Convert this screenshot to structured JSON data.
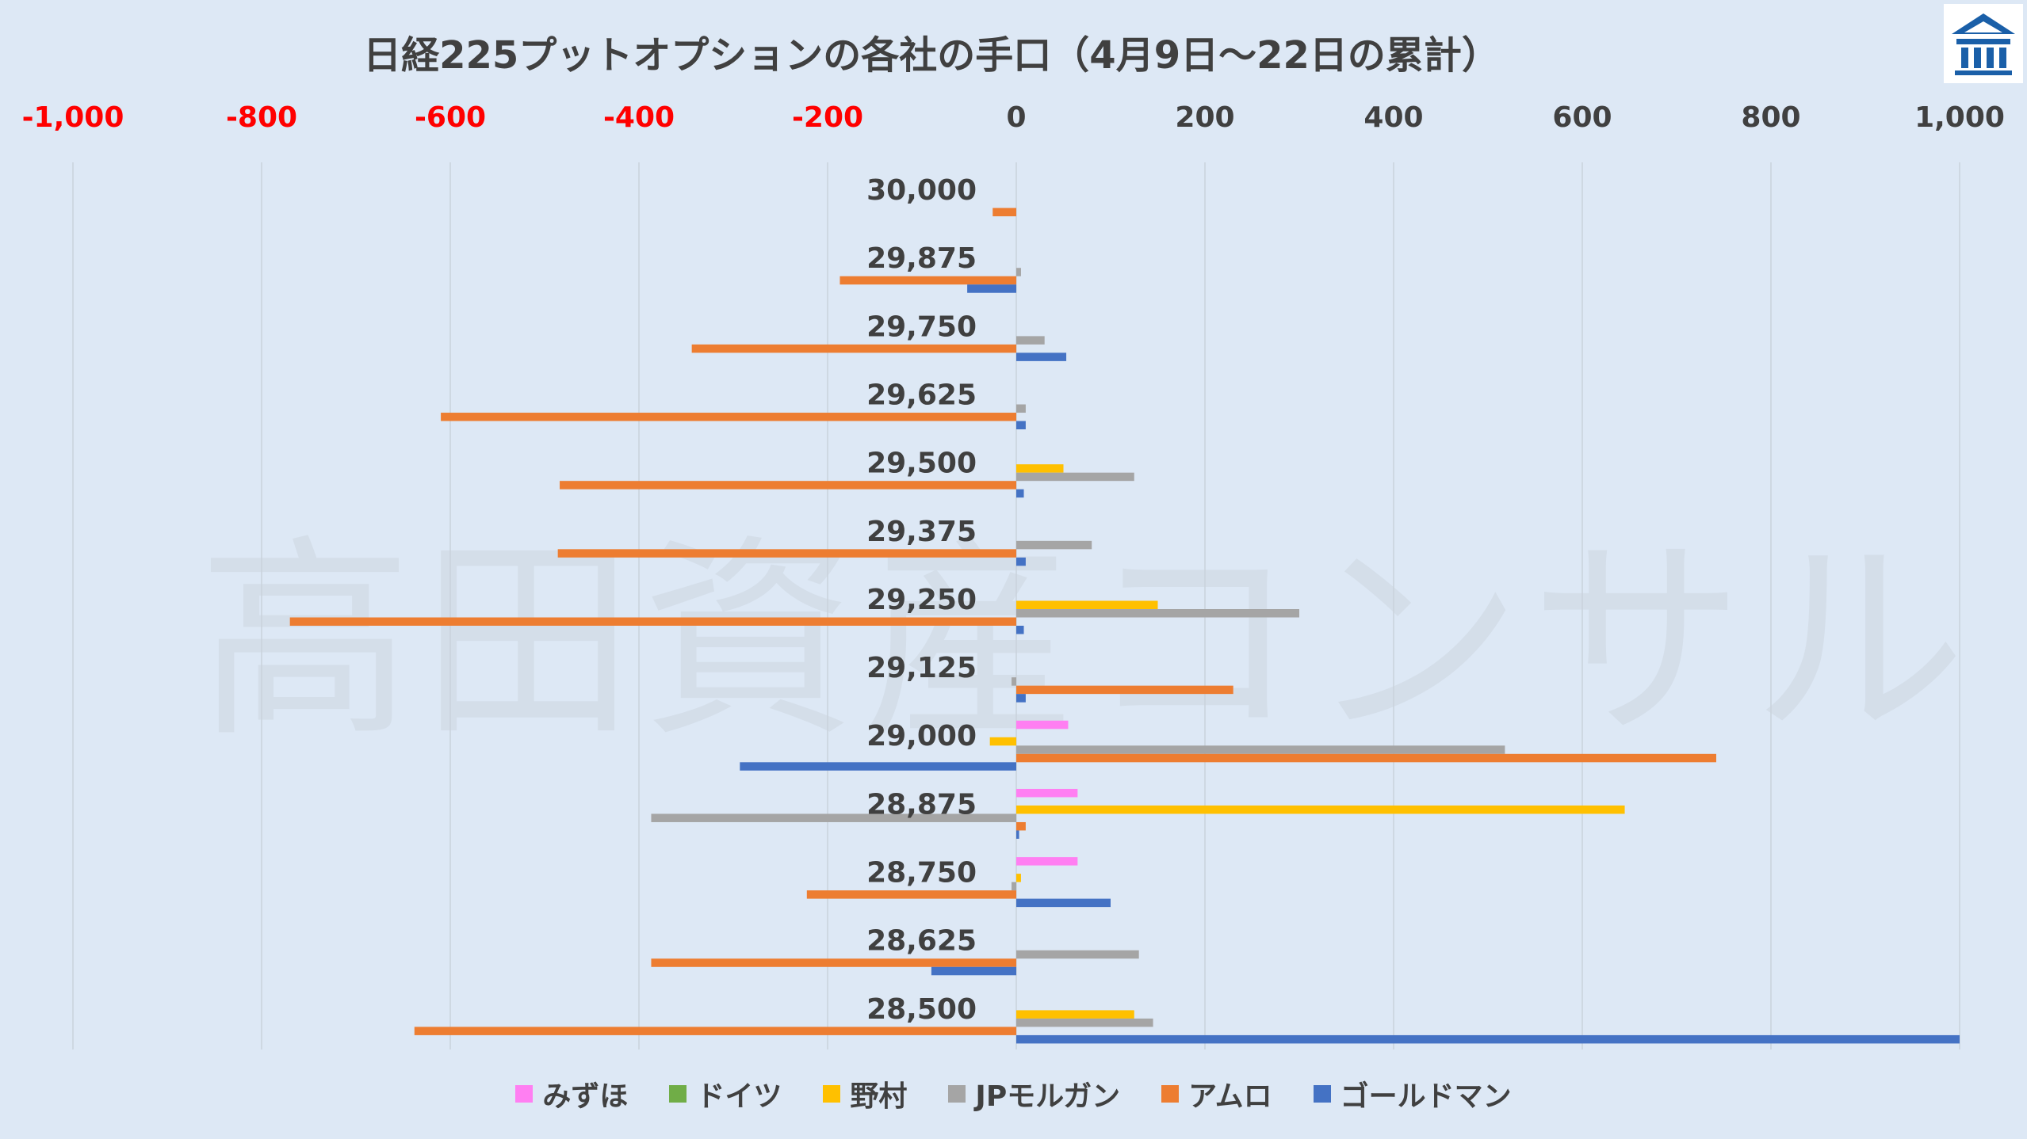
{
  "chart_data": {
    "type": "bar",
    "orientation": "horizontal",
    "title": "日経225プットオプションの各社の手口（4月9日～22日の累計）",
    "watermark": "高田資産コンサル",
    "xlim": [
      -1000,
      1000
    ],
    "x_ticks": [
      -1000,
      -800,
      -600,
      -400,
      -200,
      0,
      200,
      400,
      600,
      800,
      1000
    ],
    "x_tick_labels": [
      "-1,000",
      "-800",
      "-600",
      "-400",
      "-200",
      "0",
      "200",
      "400",
      "600",
      "800",
      "1,000"
    ],
    "negative_tick_color": "#ff0000",
    "positive_tick_color": "#404040",
    "grid": "vertical",
    "legend_position": "bottom",
    "categories": [
      "30,000",
      "29,875",
      "29,750",
      "29,625",
      "29,500",
      "29,375",
      "29,250",
      "29,125",
      "29,000",
      "28,875",
      "28,750",
      "28,625",
      "28,500"
    ],
    "series": [
      {
        "name": "みずほ",
        "color": "#ff7ff2",
        "values": [
          0,
          0,
          0,
          0,
          0,
          0,
          0,
          0,
          55,
          65,
          65,
          0,
          0
        ]
      },
      {
        "name": "ドイツ",
        "color": "#70ad47",
        "values": [
          0,
          0,
          0,
          0,
          0,
          0,
          0,
          0,
          0,
          0,
          0,
          0,
          0
        ]
      },
      {
        "name": "野村",
        "color": "#ffc000",
        "values": [
          0,
          0,
          0,
          0,
          50,
          0,
          150,
          0,
          -28,
          645,
          5,
          0,
          125
        ]
      },
      {
        "name": "JPモルガン",
        "color": "#a5a5a5",
        "values": [
          0,
          5,
          30,
          10,
          125,
          80,
          300,
          -5,
          518,
          -387,
          -5,
          130,
          145
        ]
      },
      {
        "name": "アムロ",
        "color": "#ed7d31",
        "values": [
          -25,
          -187,
          -344,
          -610,
          -484,
          -486,
          -770,
          230,
          742,
          10,
          -222,
          -387,
          -638
        ]
      },
      {
        "name": "ゴールドマン",
        "color": "#4472c4",
        "values": [
          0,
          -52,
          53,
          10,
          8,
          10,
          8,
          10,
          -293,
          3,
          100,
          -90,
          1000
        ]
      }
    ]
  }
}
